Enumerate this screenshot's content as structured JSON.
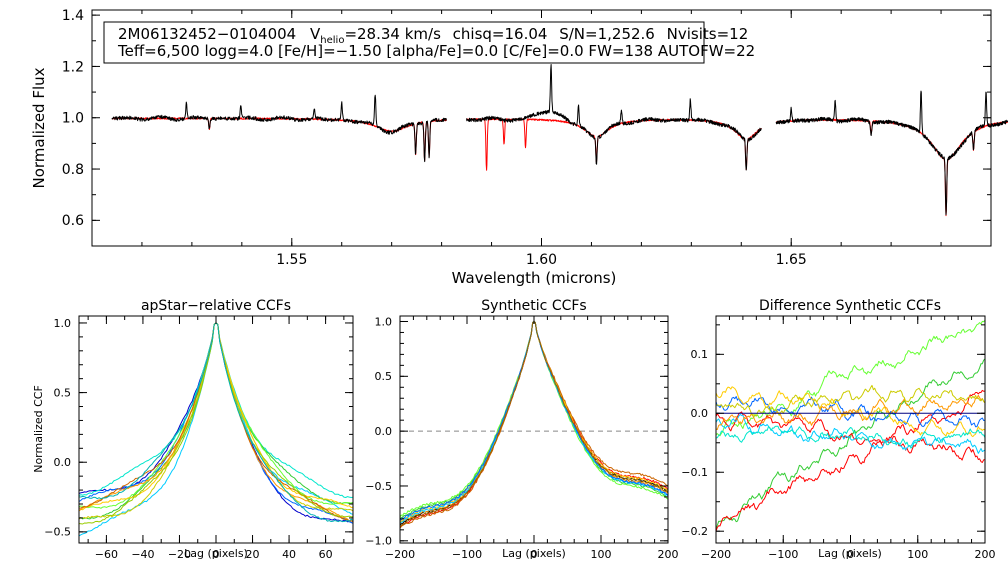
{
  "figure": {
    "info_box": {
      "line1": {
        "star_id": "2M06132452−0104004",
        "v_prefix": "V",
        "v_subscript": "helio",
        "v_value": "=28.34 km/s",
        "chisq": "chisq=16.04",
        "snr": "S/N=1,252.6",
        "nvisits": "Nvisits=12"
      },
      "line2": "Teff=6,500 logg=4.0 [Fe/H]=−1.50 [alpha/Fe]=0.0 [C/Fe]=0.0 FW=138 AUTOFW=22"
    }
  },
  "chart_data": [
    {
      "id": "spectrum",
      "type": "line",
      "title": "",
      "xlabel": "Wavelength (microns)",
      "ylabel": "Normalized Flux",
      "xlim": [
        1.51,
        1.69
      ],
      "ylim": [
        0.5,
        1.42
      ],
      "xticks": [
        1.55,
        1.6,
        1.65
      ],
      "xtick_labels": [
        "1.55",
        "1.60",
        "1.65"
      ],
      "yticks": [
        0.6,
        0.8,
        1.0,
        1.2,
        1.4
      ],
      "ytick_labels": [
        "0.6",
        "0.8",
        "1.0",
        "1.2",
        "1.4"
      ],
      "chips": [
        [
          1.514,
          1.581
        ],
        [
          1.585,
          1.644
        ],
        [
          1.647,
          1.694
        ]
      ],
      "series": [
        {
          "name": "Observed spectrum",
          "color": "#000000"
        },
        {
          "name": "Best-fit model",
          "color": "#ff0000"
        }
      ],
      "features": [
        {
          "x": 1.5289,
          "depth": 0.06,
          "kind": "emission",
          "series": "observed"
        },
        {
          "x": 1.5335,
          "depth": 0.04,
          "kind": "absorption",
          "series": "both"
        },
        {
          "x": 1.5398,
          "depth": 0.05,
          "kind": "emission",
          "series": "observed"
        },
        {
          "x": 1.5545,
          "depth": 0.04,
          "kind": "emission",
          "series": "observed"
        },
        {
          "x": 1.56,
          "depth": 0.07,
          "kind": "emission",
          "series": "observed"
        },
        {
          "x": 1.5667,
          "depth": 0.12,
          "kind": "emission",
          "series": "observed"
        },
        {
          "x": 1.5748,
          "depth": 0.12,
          "kind": "absorption",
          "series": "both"
        },
        {
          "x": 1.5766,
          "depth": 0.15,
          "kind": "absorption",
          "series": "both"
        },
        {
          "x": 1.5775,
          "depth": 0.14,
          "kind": "absorption",
          "series": "both"
        },
        {
          "x": 1.589,
          "depth": 0.2,
          "kind": "absorption",
          "series": "model"
        },
        {
          "x": 1.5925,
          "depth": 0.1,
          "kind": "absorption",
          "series": "model"
        },
        {
          "x": 1.5968,
          "depth": 0.11,
          "kind": "absorption",
          "series": "model"
        },
        {
          "x": 1.6019,
          "depth": 0.18,
          "kind": "emission",
          "series": "observed"
        },
        {
          "x": 1.6074,
          "depth": 0.08,
          "kind": "emission",
          "series": "observed"
        },
        {
          "x": 1.611,
          "depth": 0.1,
          "kind": "absorption",
          "series": "both"
        },
        {
          "x": 1.616,
          "depth": 0.05,
          "kind": "emission",
          "series": "observed"
        },
        {
          "x": 1.6298,
          "depth": 0.08,
          "kind": "emission",
          "series": "observed"
        },
        {
          "x": 1.641,
          "depth": 0.12,
          "kind": "absorption",
          "series": "both"
        },
        {
          "x": 1.65,
          "depth": 0.05,
          "kind": "emission",
          "series": "observed"
        },
        {
          "x": 1.6588,
          "depth": 0.08,
          "kind": "emission",
          "series": "observed"
        },
        {
          "x": 1.666,
          "depth": 0.05,
          "kind": "absorption",
          "series": "both"
        },
        {
          "x": 1.676,
          "depth": 0.17,
          "kind": "emission",
          "series": "observed"
        },
        {
          "x": 1.681,
          "depth": 0.22,
          "kind": "absorption",
          "series": "both"
        },
        {
          "x": 1.6865,
          "depth": 0.07,
          "kind": "absorption",
          "series": "both"
        },
        {
          "x": 1.689,
          "depth": 0.13,
          "kind": "emission",
          "series": "observed"
        }
      ],
      "broad_features": [
        {
          "x": 1.57,
          "width": 0.004,
          "depth": 0.05
        },
        {
          "x": 1.611,
          "width": 0.003,
          "depth": 0.07
        },
        {
          "x": 1.641,
          "width": 0.0028,
          "depth": 0.08
        },
        {
          "x": 1.6811,
          "width": 0.0038,
          "depth": 0.16
        }
      ]
    },
    {
      "id": "apstar-ccf",
      "type": "line",
      "title": "apStar−relative CCFs",
      "xlabel": "Lag (pixels)",
      "ylabel": "Normalized CCF",
      "xlim": [
        -75,
        75
      ],
      "ylim": [
        -0.58,
        1.05
      ],
      "xticks": [
        -60,
        -40,
        -20,
        0,
        20,
        40,
        60
      ],
      "xtick_labels": [
        "−60",
        "−40",
        "−20",
        "0",
        "20",
        "40",
        "60"
      ],
      "yticks": [
        -0.5,
        0.0,
        0.5,
        1.0
      ],
      "ytick_labels": [
        "−0.5",
        "0.0",
        "0.5",
        "1.0"
      ],
      "series": [
        {
          "name": "visit-1",
          "color": "#0000cc",
          "end_left": -0.27,
          "end_right": -0.49
        },
        {
          "name": "visit-2",
          "color": "#0066ff",
          "end_left": -0.3,
          "end_right": -0.46
        },
        {
          "name": "visit-3",
          "color": "#00ccff",
          "end_left": -0.52,
          "end_right": -0.36
        },
        {
          "name": "visit-4",
          "color": "#00e6cc",
          "end_left": -0.22,
          "end_right": -0.24
        },
        {
          "name": "visit-5",
          "color": "#33cc33",
          "end_left": -0.41,
          "end_right": -0.3
        },
        {
          "name": "visit-6",
          "color": "#66ff33",
          "end_left": -0.36,
          "end_right": -0.33
        },
        {
          "name": "visit-7",
          "color": "#cccc00",
          "end_left": -0.46,
          "end_right": -0.4
        },
        {
          "name": "visit-8",
          "color": "#ffcc00",
          "end_left": -0.38,
          "end_right": -0.36
        },
        {
          "name": "visit-9",
          "color": "#ff9900",
          "end_left": -0.34,
          "end_right": -0.43
        },
        {
          "name": "visit-10",
          "color": "#cc6600",
          "end_left": -0.31,
          "end_right": -0.41
        },
        {
          "name": "visit-11",
          "color": "#99cc00",
          "end_left": -0.44,
          "end_right": -0.39
        },
        {
          "name": "visit-12",
          "color": "#00b3b3",
          "end_left": -0.28,
          "end_right": -0.45
        }
      ]
    },
    {
      "id": "synthetic-ccf",
      "type": "line",
      "title": "Synthetic CCFs",
      "xlabel": "Lag (pixels)",
      "ylabel": "",
      "xlim": [
        -200,
        200
      ],
      "ylim": [
        -1.02,
        1.05
      ],
      "xticks": [
        -200,
        -100,
        0,
        100,
        200
      ],
      "xtick_labels": [
        "−200",
        "−100",
        "0",
        "100",
        "200"
      ],
      "yticks": [
        -1.0,
        -0.5,
        0.0,
        0.5,
        1.0
      ],
      "ytick_labels": [
        "−1.0",
        "−0.5",
        "0.0",
        "0.5",
        "1.0"
      ],
      "zero_line": true,
      "series": [
        {
          "name": "visit-1",
          "color": "#000000",
          "end_left": -0.77,
          "end_right": -0.48
        },
        {
          "name": "visit-2",
          "color": "#ff0000",
          "end_left": -0.79,
          "end_right": -0.46
        },
        {
          "name": "visit-3",
          "color": "#33cc33",
          "end_left": -0.72,
          "end_right": -0.53
        },
        {
          "name": "visit-4",
          "color": "#66ff33",
          "end_left": -0.7,
          "end_right": -0.55
        },
        {
          "name": "visit-5",
          "color": "#cc6600",
          "end_left": -0.8,
          "end_right": -0.43
        },
        {
          "name": "visit-6",
          "color": "#ff9900",
          "end_left": -0.76,
          "end_right": -0.5
        },
        {
          "name": "visit-7",
          "color": "#ffcc00",
          "end_left": -0.74,
          "end_right": -0.47
        },
        {
          "name": "visit-8",
          "color": "#00ccff",
          "end_left": -0.75,
          "end_right": -0.52
        },
        {
          "name": "visit-9",
          "color": "#0066ff",
          "end_left": -0.73,
          "end_right": -0.51
        },
        {
          "name": "visit-10",
          "color": "#996600",
          "end_left": -0.78,
          "end_right": -0.49
        }
      ]
    },
    {
      "id": "difference-ccf",
      "type": "line",
      "title": "Difference Synthetic CCFs",
      "xlabel": "Lag (pixels)",
      "ylabel": "",
      "xlim": [
        -200,
        200
      ],
      "ylim": [
        -0.22,
        0.165
      ],
      "xticks": [
        -200,
        -100,
        0,
        100,
        200
      ],
      "xtick_labels": [
        "−200",
        "−100",
        "0",
        "100",
        "200"
      ],
      "yticks": [
        -0.2,
        -0.1,
        0.0,
        0.1
      ],
      "ytick_labels": [
        "−0.2",
        "−0.1",
        "0.0",
        "0.1"
      ],
      "zero_line": true,
      "series": [
        {
          "name": "visit-1",
          "color": "#66ff33",
          "left": -0.03,
          "right": 0.15
        },
        {
          "name": "visit-2",
          "color": "#33cc33",
          "left": -0.19,
          "right": 0.1
        },
        {
          "name": "visit-3",
          "color": "#ff0000",
          "left": -0.2,
          "right": 0.04
        },
        {
          "name": "visit-4",
          "color": "#ff0000",
          "left": -0.01,
          "right": -0.075
        },
        {
          "name": "visit-5",
          "color": "#00ccff",
          "left": -0.02,
          "right": -0.06
        },
        {
          "name": "visit-6",
          "color": "#0066ff",
          "left": 0.02,
          "right": -0.02
        },
        {
          "name": "visit-7",
          "color": "#ffcc00",
          "left": 0.04,
          "right": -0.03
        },
        {
          "name": "visit-8",
          "color": "#ff9900",
          "left": -0.02,
          "right": 0.02
        },
        {
          "name": "visit-9",
          "color": "#00e6cc",
          "left": -0.04,
          "right": -0.04
        },
        {
          "name": "visit-10",
          "color": "#cccc00",
          "left": 0.01,
          "right": 0.03
        },
        {
          "name": "visit-11",
          "color": "#000080",
          "left": 0.0,
          "right": 0.0
        }
      ]
    }
  ]
}
